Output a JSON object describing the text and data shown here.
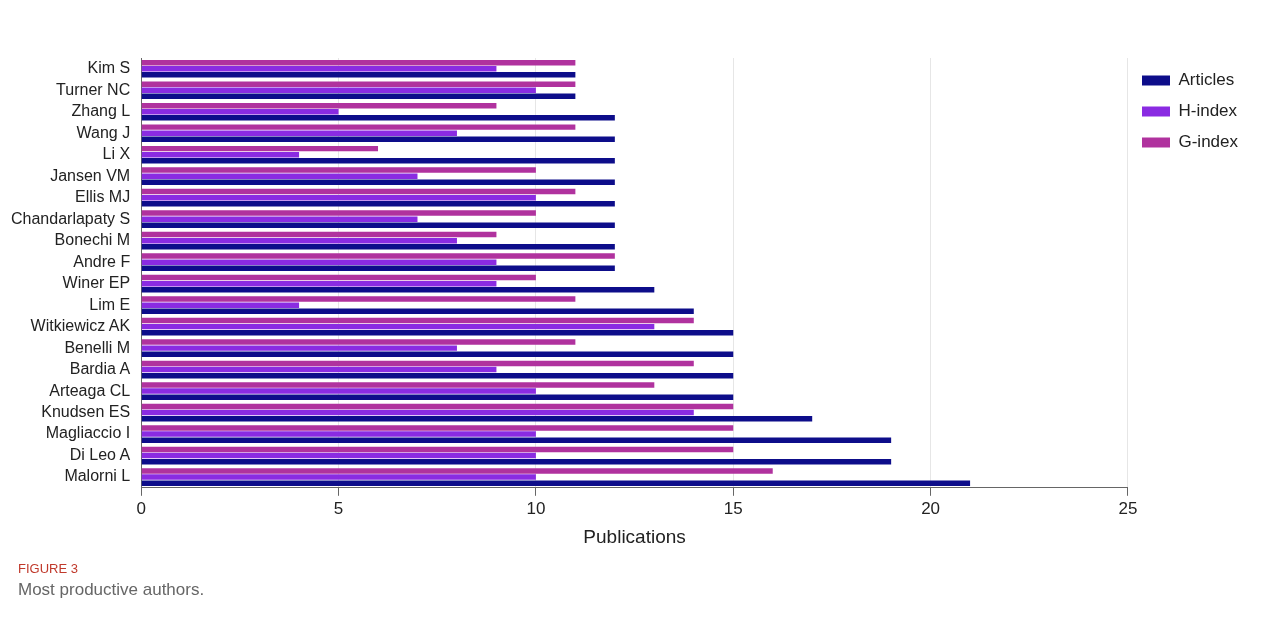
{
  "chart_data": {
    "type": "bar",
    "orientation": "horizontal",
    "title": "FIGURE 3",
    "annotations": [
      "Most productive authors."
    ],
    "xlabel": "Publications",
    "categories": [
      "Kim S",
      "Turner NC",
      "Zhang L",
      "Wang J",
      "Li X",
      "Jansen VM",
      "Ellis MJ",
      "Chandarlapaty S",
      "Bonechi M",
      "Andre F",
      "Winer EP",
      "Lim E",
      "Witkiewicz AK",
      "Benelli M",
      "Bardia A",
      "Arteaga CL",
      "Knudsen ES",
      "Magliaccio I",
      "Di Leo A",
      "Malorni L"
    ],
    "series": [
      {
        "name": "Articles",
        "color": "#0d0d8a",
        "values": [
          11,
          11,
          12,
          12,
          12,
          12,
          12,
          12,
          12,
          12,
          13,
          14,
          15,
          15,
          15,
          15,
          17,
          19,
          19,
          21
        ]
      },
      {
        "name": "H-index",
        "color": "#8a2be2",
        "values": [
          9,
          10,
          5,
          8,
          4,
          7,
          10,
          7,
          8,
          9,
          9,
          4,
          13,
          8,
          9,
          10,
          14,
          10,
          10,
          10
        ]
      },
      {
        "name": "G-index",
        "color": "#b0329e",
        "values": [
          11,
          11,
          9,
          11,
          6,
          10,
          11,
          10,
          9,
          12,
          10,
          11,
          14,
          11,
          14,
          13,
          15,
          15,
          15,
          16
        ]
      }
    ],
    "xlim": [
      0,
      25
    ],
    "xticks": [
      0,
      5,
      10,
      15,
      20,
      25
    ],
    "grid": "x",
    "legend": "top right"
  }
}
